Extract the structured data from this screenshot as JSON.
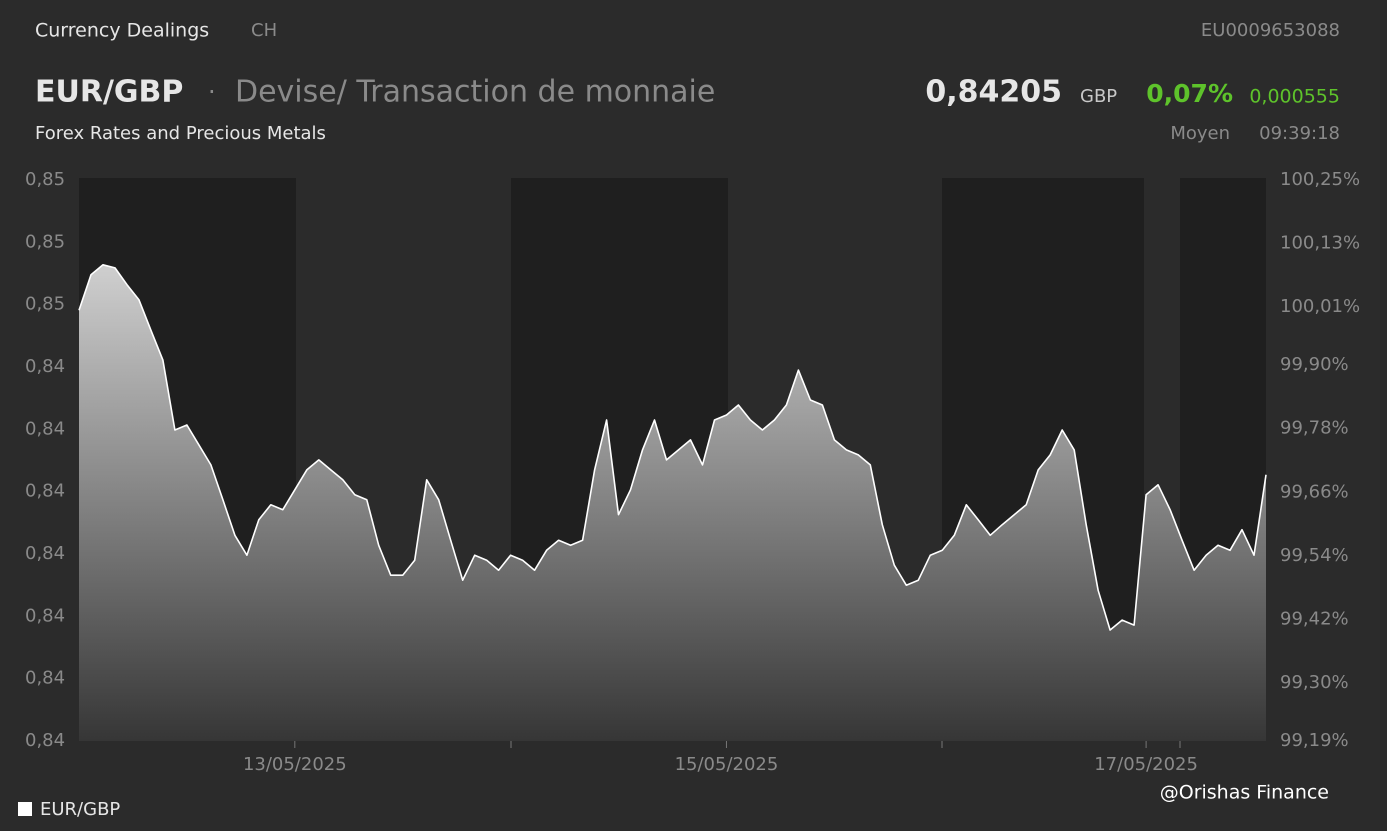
{
  "header": {
    "section": "Currency Dealings",
    "country": "CH",
    "isin": "EU0009653088",
    "symbol": "EUR/GBP",
    "separator": "·",
    "description": "Devise/ Transaction de monnaie",
    "price": "0,84205",
    "currency": "GBP",
    "change_pct": "0,07%",
    "change_abs": "0,000555",
    "market": "Forex Rates and Precious Metals",
    "price_type": "Moyen",
    "time": "09:39:18",
    "watermark": "@Orishas Finance"
  },
  "chart_data": {
    "type": "area",
    "series": [
      {
        "name": "EUR/GBP",
        "color": "#ffffff",
        "values": [
          0.84551,
          0.84608,
          0.84624,
          0.84619,
          0.84592,
          0.84568,
          0.84519,
          0.84471,
          0.84359,
          0.84367,
          0.84335,
          0.84303,
          0.84247,
          0.8419,
          0.84158,
          0.84215,
          0.84239,
          0.84231,
          0.84263,
          0.84295,
          0.84311,
          0.84295,
          0.84279,
          0.84255,
          0.84247,
          0.84174,
          0.84126,
          0.84126,
          0.8415,
          0.84279,
          0.84247,
          0.84182,
          0.84118,
          0.84158,
          0.8415,
          0.84134,
          0.84158,
          0.8415,
          0.84134,
          0.84166,
          0.84182,
          0.84174,
          0.84182,
          0.84295,
          0.84375,
          0.84223,
          0.84263,
          0.84327,
          0.84375,
          0.84311,
          0.84327,
          0.84343,
          0.84303,
          0.84375,
          0.84383,
          0.84399,
          0.84375,
          0.84359,
          0.84375,
          0.84399,
          0.84455,
          0.84407,
          0.84399,
          0.84343,
          0.84327,
          0.84319,
          0.84303,
          0.84207,
          0.84142,
          0.8411,
          0.84118,
          0.84158,
          0.84166,
          0.8419,
          0.84239,
          0.84215,
          0.8419,
          0.84207,
          0.84223,
          0.84239,
          0.84295,
          0.84319,
          0.84359,
          0.84327,
          0.84207,
          0.84102,
          0.84038,
          0.84054,
          0.84046,
          0.84255,
          0.84271,
          0.84231,
          0.84182,
          0.84134,
          0.84158,
          0.84174,
          0.84166,
          0.84199,
          0.84158,
          0.84287
        ]
      }
    ],
    "categories": [
      null,
      null,
      null,
      null,
      null,
      null,
      null,
      null,
      null,
      null,
      null,
      null,
      null,
      null,
      null,
      null,
      null,
      null,
      "13/05/2025",
      null,
      null,
      null,
      null,
      null,
      null,
      null,
      null,
      null,
      null,
      null,
      null,
      null,
      null,
      null,
      null,
      null,
      null,
      null,
      null,
      null,
      null,
      null,
      null,
      null,
      null,
      null,
      null,
      null,
      null,
      null,
      null,
      null,
      null,
      null,
      "15/05/2025",
      null,
      null,
      null,
      null,
      null,
      null,
      null,
      null,
      null,
      null,
      null,
      null,
      null,
      null,
      null,
      null,
      null,
      null,
      null,
      null,
      null,
      null,
      null,
      null,
      null,
      null,
      null,
      null,
      null,
      null,
      null,
      null,
      null,
      null,
      "17/05/2025",
      null,
      null,
      null,
      null,
      null,
      null,
      null,
      null,
      null,
      null
    ],
    "ylim": [
      0.8386,
      0.8476
    ],
    "yticks": [
      {
        "value": 0.8476,
        "label": "0,85"
      },
      {
        "value": 0.8466,
        "label": "0,85"
      },
      {
        "value": 0.8456,
        "label": "0,85"
      },
      {
        "value": 0.8446,
        "label": "0,84"
      },
      {
        "value": 0.8436,
        "label": "0,84"
      },
      {
        "value": 0.8426,
        "label": "0,84"
      },
      {
        "value": 0.8416,
        "label": "0,84"
      },
      {
        "value": 0.8406,
        "label": "0,84"
      },
      {
        "value": 0.8396,
        "label": "0,84"
      },
      {
        "value": 0.8386,
        "label": "0,84"
      }
    ],
    "y2lim": [
      99.19,
      100.25
    ],
    "y2ticks": [
      {
        "value": 100.25,
        "label": "100,25%"
      },
      {
        "value": 100.13,
        "label": "100,13%"
      },
      {
        "value": 100.01,
        "label": "100,01%"
      },
      {
        "value": 99.9,
        "label": "99,90%"
      },
      {
        "value": 99.78,
        "label": "99,78%"
      },
      {
        "value": 99.66,
        "label": "99,66%"
      },
      {
        "value": 99.54,
        "label": "99,54%"
      },
      {
        "value": 99.42,
        "label": "99,42%"
      },
      {
        "value": 99.3,
        "label": "99,30%"
      },
      {
        "value": 99.19,
        "label": "99,19%"
      }
    ],
    "legend": "bottom-left"
  }
}
